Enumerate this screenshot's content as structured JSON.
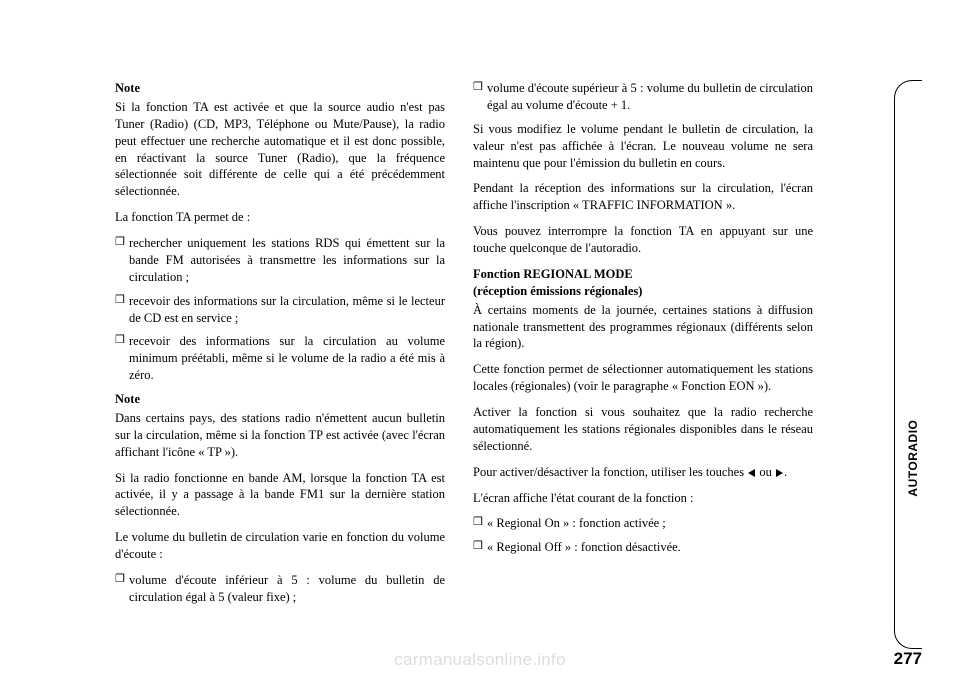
{
  "page_number": "277",
  "sidebar_label": "AUTORADIO",
  "watermark": "carmanualsonline.info",
  "col1": {
    "note1_heading": "Note",
    "note1_p1": "Si la fonction TA est activée et que la source audio n'est pas Tuner (Radio) (CD, MP3, Téléphone ou Mute/Pause), la radio peut effectuer une recherche automatique et il est donc possible, en réactivant la source Tuner (Radio), que la fréquence sélectionnée soit différente de celle qui a été précédemment sélectionnée.",
    "p2": "La fonction TA permet de :",
    "li1": "rechercher uniquement les stations RDS qui émettent sur la bande FM autorisées à transmettre les informations sur la circulation ;",
    "li2": "recevoir des informations sur la circulation, même si le lecteur de CD est en service ;",
    "li3": "recevoir des informations sur la circulation au volume minimum préétabli, même si le volume de la radio a été mis à zéro.",
    "note2_heading": "Note",
    "note2_p1": "Dans certains pays, des stations radio n'émettent aucun bulletin sur la circulation, même si la fonction TP est activée (avec l'écran affichant l'icône « TP »).",
    "note2_p2": "Si la radio fonctionne en bande AM, lorsque la fonction TA est activée, il y a passage à la bande FM1 sur la dernière station sélectionnée.",
    "note2_p3": "Le volume du bulletin de circulation varie en fonction du volume d'écoute :",
    "li4": "volume d'écoute inférieur à 5 : volume du bulletin de circulation égal à 5 (valeur fixe) ;"
  },
  "col2": {
    "li5": "volume d'écoute supérieur à 5 : volume du bulletin de circulation égal au volume d'écoute + 1.",
    "p1": "Si vous modifiez le volume pendant le bulletin de circulation, la valeur n'est pas affichée à l'écran. Le nouveau volume ne sera maintenu que pour l'émission du bulletin en cours.",
    "p2": "Pendant la réception des informations sur la circulation, l'écran affiche l'inscription « TRAFFIC INFORMATION ».",
    "p3": "Vous pouvez interrompre la fonction TA en appuyant sur une touche quelconque de l'autoradio.",
    "regional_title": "Fonction REGIONAL MODE",
    "regional_sub": "(réception émissions régionales)",
    "regional_p1": "À certains moments de la journée, certaines stations à diffusion nationale transmettent des programmes régionaux (différents selon la région).",
    "regional_p2": "Cette fonction permet de sélectionner automatiquement les stations locales (régionales) (voir le paragraphe « Fonction EON »).",
    "regional_p3": "Activer la fonction si vous souhaitez que la radio recherche automatiquement les stations régionales disponibles dans le réseau sélectionné.",
    "regional_p4_pre": "Pour activer/désactiver la fonction, utiliser les touches ",
    "regional_p4_mid": " ou ",
    "regional_p4_post": ".",
    "regional_p5": "L'écran affiche l'état courant de la fonction :",
    "li6": "« Regional On » : fonction activée ;",
    "li7": "« Regional Off » : fonction désactivée."
  }
}
